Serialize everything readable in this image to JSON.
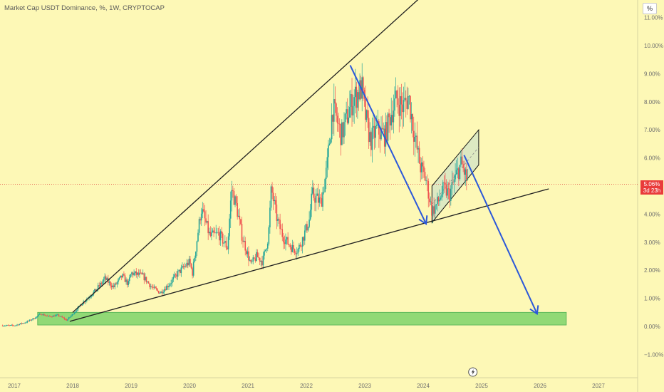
{
  "header": {
    "title": "Market Cap USDT Dominance, %, 1W, CRYPTOCAP"
  },
  "axis_button": "%",
  "price_tag": {
    "value": "5.06%",
    "countdown": "3d 23h"
  },
  "colors": {
    "background": "#fdf8b6",
    "bull": "#26a69a",
    "bear": "#ef5350",
    "arrow": "#2b58d9",
    "trendline": "#1f1f1f",
    "zone": "#7ed36b",
    "channel": "#cfe3c8",
    "price_line": "#e0413c"
  },
  "event_icon": "lightning-icon",
  "chart_data": {
    "type": "candlestick",
    "title": "Market Cap USDT Dominance, %, 1W, CRYPTOCAP",
    "ylim": [
      -1.3,
      11.2
    ],
    "y_ticks": [
      11,
      10,
      9,
      8,
      7,
      6,
      5,
      4,
      3,
      2,
      1,
      0,
      -1
    ],
    "y_tick_labels": [
      "11.00%",
      "10.00%",
      "9.00%",
      "8.00%",
      "7.00%",
      "6.00%",
      "5.00%",
      "4.00%",
      "3.00%",
      "2.00%",
      "1.00%",
      "0.00%",
      "−1.00%"
    ],
    "x_ticks": [
      2017,
      2018,
      2019,
      2020,
      2021,
      2022,
      2023,
      2024,
      2025,
      2026,
      2027
    ],
    "x_tick_labels": [
      "2017",
      "2018",
      "2019",
      "2020",
      "2021",
      "2022",
      "2023",
      "2024",
      "2025",
      "2026",
      "2027"
    ],
    "xlim": [
      2016.8,
      2027.6
    ],
    "last_value": 5.06,
    "price_path": [
      [
        2016.8,
        0.03
      ],
      [
        2017.0,
        0.03
      ],
      [
        2017.2,
        0.15
      ],
      [
        2017.35,
        0.3
      ],
      [
        2017.45,
        0.45
      ],
      [
        2017.6,
        0.35
      ],
      [
        2017.75,
        0.4
      ],
      [
        2017.9,
        0.22
      ],
      [
        2018.05,
        0.55
      ],
      [
        2018.15,
        0.8
      ],
      [
        2018.3,
        1.1
      ],
      [
        2018.4,
        1.3
      ],
      [
        2018.55,
        1.7
      ],
      [
        2018.7,
        1.4
      ],
      [
        2018.85,
        1.8
      ],
      [
        2018.95,
        1.5
      ],
      [
        2019.0,
        1.9
      ],
      [
        2019.2,
        1.8
      ],
      [
        2019.35,
        1.4
      ],
      [
        2019.5,
        1.2
      ],
      [
        2019.65,
        1.5
      ],
      [
        2019.8,
        1.9
      ],
      [
        2019.9,
        2.1
      ],
      [
        2020.0,
        2.3
      ],
      [
        2020.05,
        1.9
      ],
      [
        2020.2,
        4.2
      ],
      [
        2020.35,
        3.2
      ],
      [
        2020.5,
        3.3
      ],
      [
        2020.65,
        2.8
      ],
      [
        2020.72,
        4.9
      ],
      [
        2020.8,
        4.3
      ],
      [
        2020.9,
        3.2
      ],
      [
        2021.05,
        2.2
      ],
      [
        2021.15,
        2.5
      ],
      [
        2021.25,
        2.3
      ],
      [
        2021.35,
        3.2
      ],
      [
        2021.4,
        4.9
      ],
      [
        2021.5,
        3.8
      ],
      [
        2021.6,
        3.2
      ],
      [
        2021.75,
        2.8
      ],
      [
        2021.85,
        2.7
      ],
      [
        2021.95,
        3.2
      ],
      [
        2022.05,
        3.8
      ],
      [
        2022.1,
        4.7
      ],
      [
        2022.25,
        4.4
      ],
      [
        2022.35,
        5.6
      ],
      [
        2022.45,
        7.8
      ],
      [
        2022.6,
        6.8
      ],
      [
        2022.7,
        7.5
      ],
      [
        2022.8,
        8.1
      ],
      [
        2022.95,
        8.5
      ],
      [
        2023.0,
        7.6
      ],
      [
        2023.1,
        6.6
      ],
      [
        2023.2,
        7.0
      ],
      [
        2023.35,
        6.8
      ],
      [
        2023.45,
        7.6
      ],
      [
        2023.55,
        8.1
      ],
      [
        2023.65,
        7.8
      ],
      [
        2023.75,
        8.2
      ],
      [
        2023.85,
        6.8
      ],
      [
        2023.95,
        5.7
      ],
      [
        2024.05,
        5.2
      ],
      [
        2024.15,
        4.1
      ],
      [
        2024.25,
        4.4
      ],
      [
        2024.35,
        4.9
      ],
      [
        2024.45,
        4.7
      ],
      [
        2024.55,
        5.3
      ],
      [
        2024.65,
        5.8
      ],
      [
        2024.72,
        5.4
      ],
      [
        2024.78,
        5.06
      ]
    ],
    "annotations": {
      "upper_trendline": [
        [
          2018.0,
          0.5
        ],
        [
          2022.75,
          9.45
        ]
      ],
      "lower_trendline": [
        [
          2017.95,
          0.18
        ],
        [
          2026.15,
          4.9
        ]
      ],
      "channel": [
        [
          2024.15,
          5.0
        ],
        [
          2024.95,
          7.0
        ],
        [
          2024.95,
          5.75
        ],
        [
          2024.15,
          3.7
        ]
      ],
      "arrow_1": [
        [
          2022.75,
          9.3
        ],
        [
          2024.05,
          3.65
        ]
      ],
      "arrow_2": [
        [
          2024.7,
          6.1
        ],
        [
          2025.95,
          0.45
        ]
      ],
      "support_zone": {
        "x": [
          2017.4,
          2026.45
        ],
        "y": [
          0.05,
          0.5
        ]
      }
    }
  }
}
